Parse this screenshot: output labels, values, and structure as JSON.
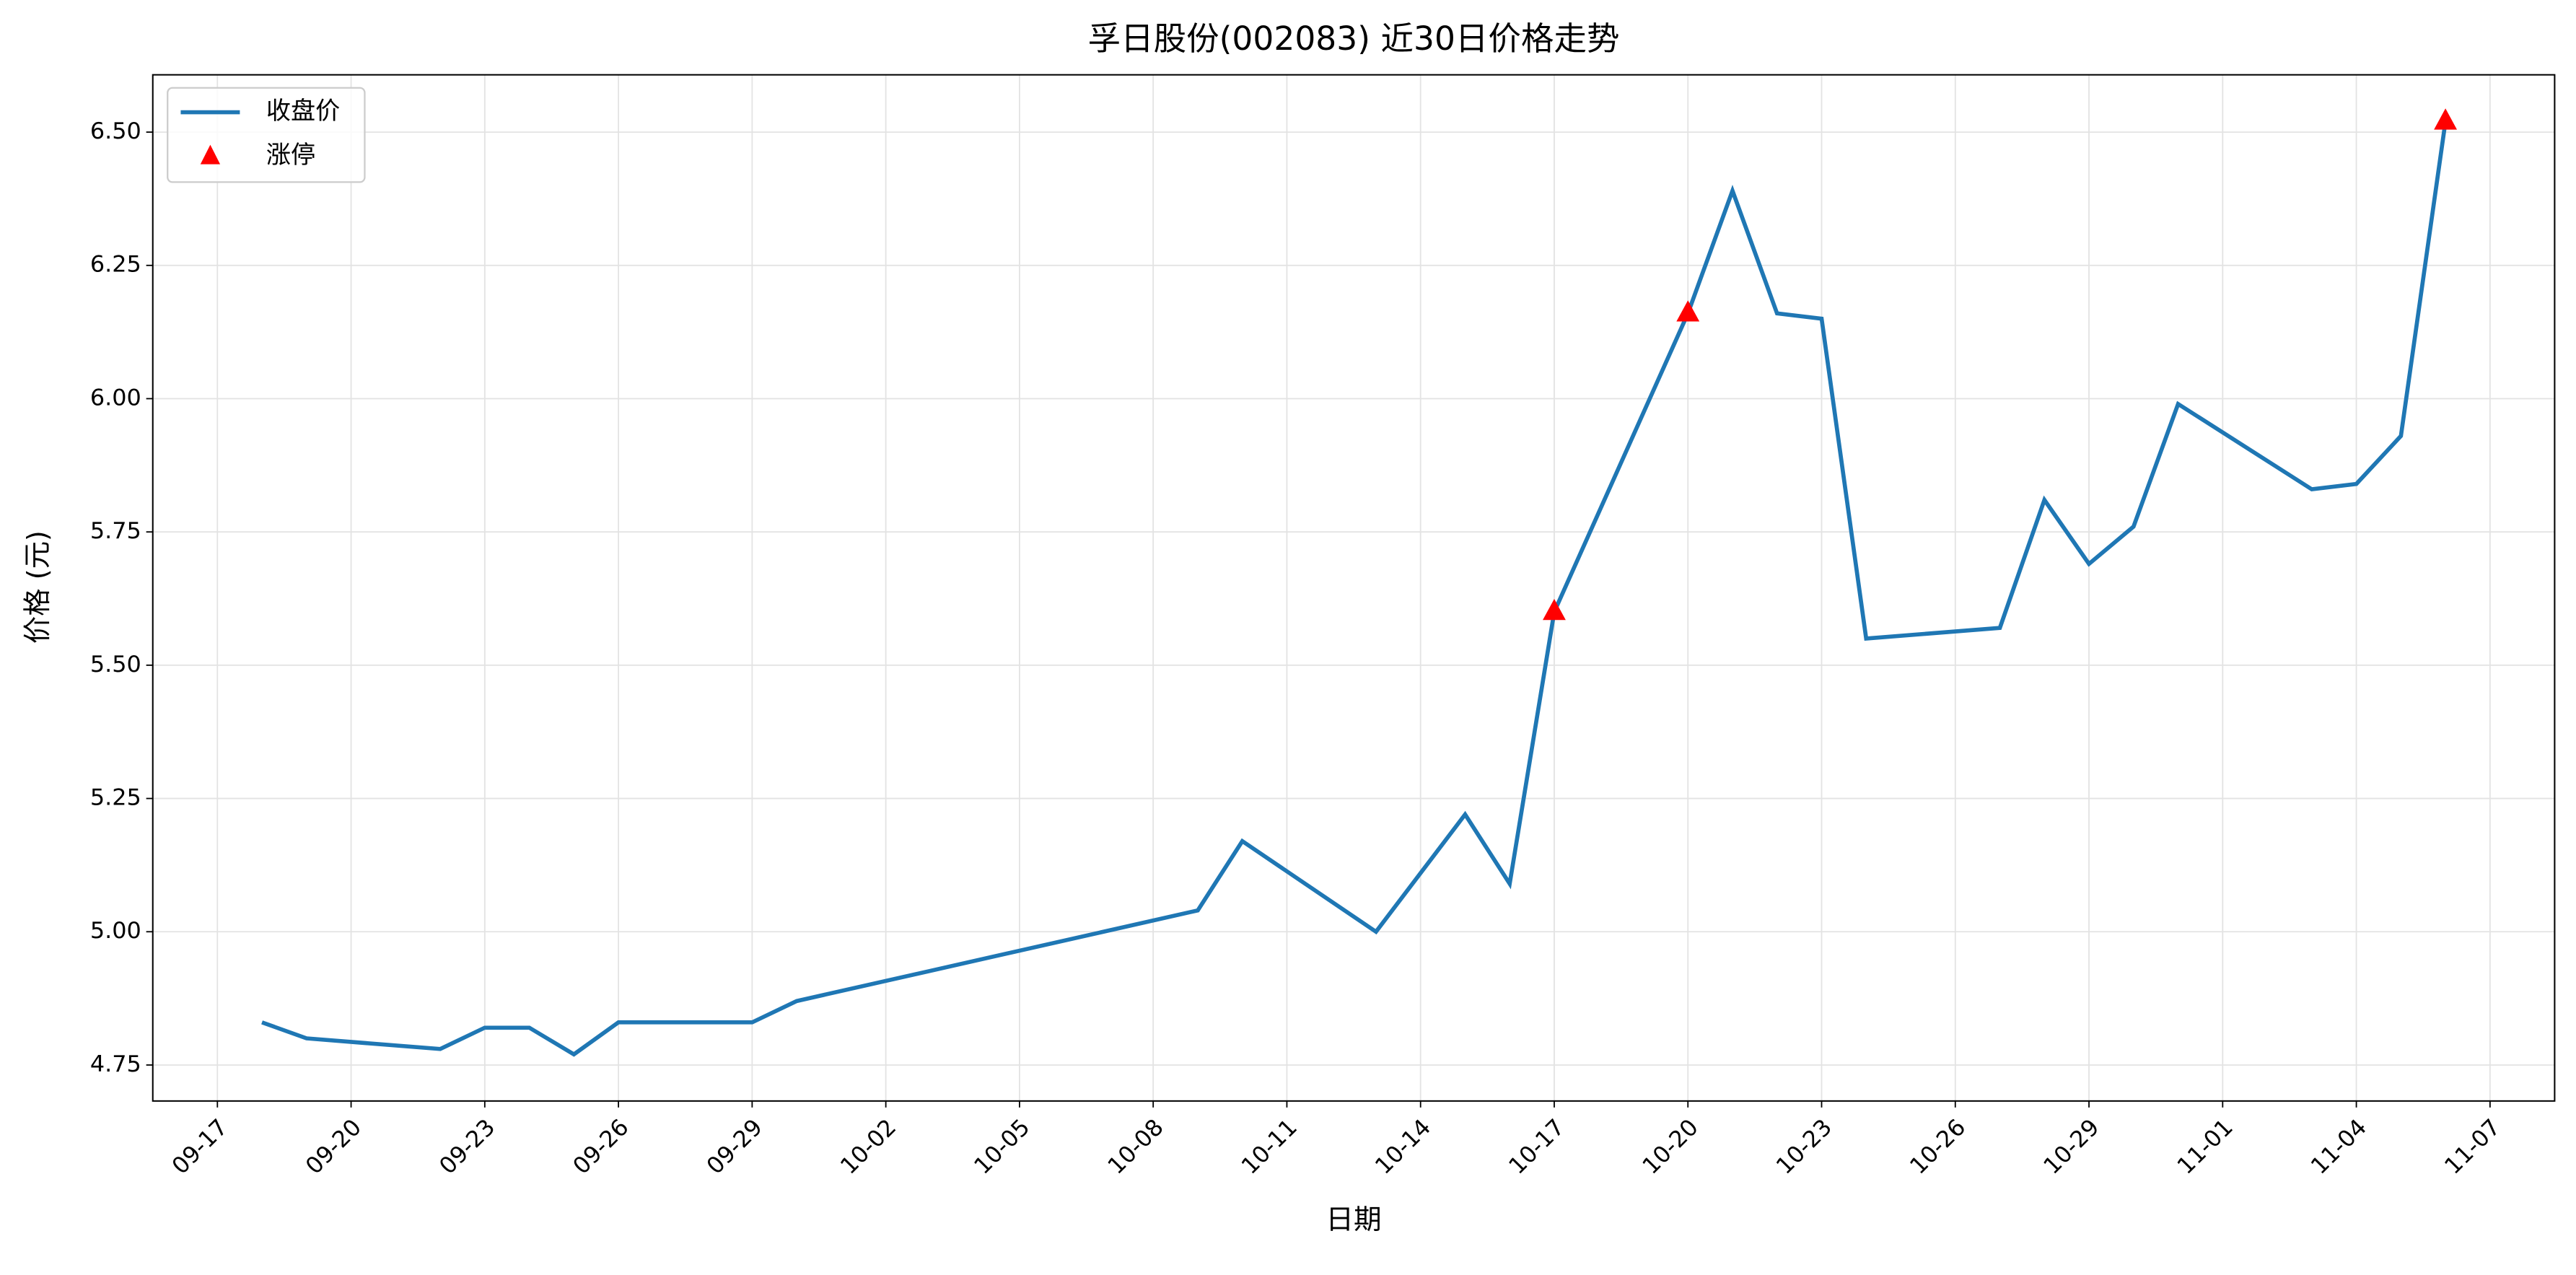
{
  "chart_data": {
    "type": "line",
    "title": "孚日股份(002083) 近30日价格走势",
    "xlabel": "日期",
    "ylabel": "价格 (元)",
    "x": [
      "09-18",
      "09-19",
      "09-22",
      "09-23",
      "09-24",
      "09-25",
      "09-26",
      "09-29",
      "09-30",
      "10-09",
      "10-10",
      "10-13",
      "10-15",
      "10-16",
      "10-17",
      "10-20",
      "10-21",
      "10-22",
      "10-23",
      "10-24",
      "10-27",
      "10-28",
      "10-29",
      "10-30",
      "10-31",
      "11-03",
      "11-04",
      "11-05",
      "11-06"
    ],
    "series": [
      {
        "name": "收盘价",
        "type": "line",
        "color": "#1f77b4",
        "values": [
          4.83,
          4.8,
          4.78,
          4.82,
          4.82,
          4.77,
          4.83,
          4.83,
          4.87,
          5.04,
          5.17,
          5.0,
          5.22,
          5.09,
          5.6,
          6.16,
          6.39,
          6.16,
          6.15,
          5.55,
          5.57,
          5.81,
          5.69,
          5.76,
          5.99,
          5.83,
          5.84,
          5.93,
          6.52
        ]
      },
      {
        "name": "涨停",
        "type": "scatter",
        "color": "#ff0000",
        "x": [
          "10-17",
          "10-20",
          "11-06"
        ],
        "values": [
          5.6,
          6.16,
          6.52
        ]
      }
    ],
    "ylim": [
      4.6825,
      6.6075
    ],
    "yticks": [
      4.75,
      {
        "value": 5.0,
        "label": "5.00"
      },
      5.25,
      {
        "value": 5.5,
        "label": "5.50"
      },
      5.75,
      {
        "value": 6.0,
        "label": "6.00"
      },
      6.25,
      {
        "value": 6.5,
        "label": "6.50"
      }
    ],
    "xticks": [
      "09-17",
      "09-20",
      "09-23",
      "09-26",
      "09-29",
      "10-02",
      "10-05",
      "10-08",
      "10-11",
      "10-14",
      "10-17",
      "10-20",
      "10-23",
      "10-26",
      "10-29",
      "11-01",
      "11-04",
      "11-07"
    ],
    "grid": true,
    "legend": "upper left"
  }
}
